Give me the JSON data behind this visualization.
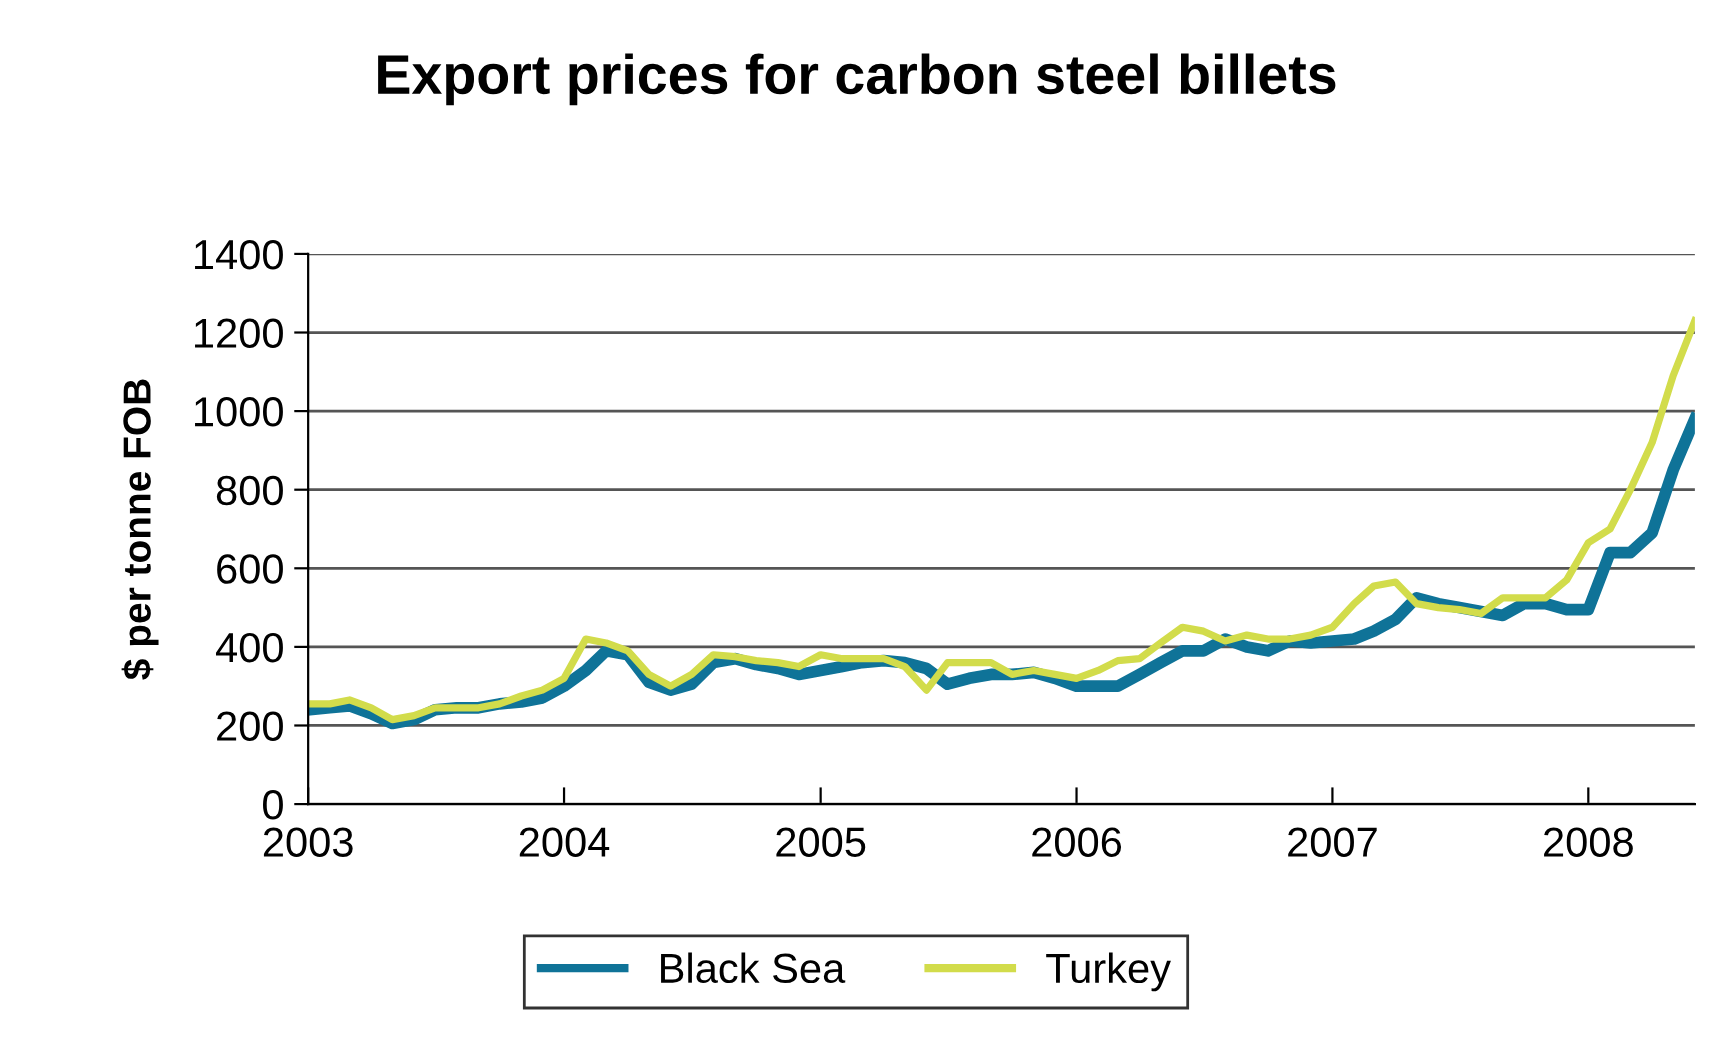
{
  "chart_data": {
    "type": "line",
    "title": "Export prices for carbon steel billets",
    "ylabel": "$ per tonne FOB",
    "x": [
      "2003-01",
      "2003-02",
      "2003-03",
      "2003-04",
      "2003-05",
      "2003-06",
      "2003-07",
      "2003-08",
      "2003-09",
      "2003-10",
      "2003-11",
      "2003-12",
      "2004-01",
      "2004-02",
      "2004-03",
      "2004-04",
      "2004-05",
      "2004-06",
      "2004-07",
      "2004-08",
      "2004-09",
      "2004-10",
      "2004-11",
      "2004-12",
      "2005-01",
      "2005-02",
      "2005-03",
      "2005-04",
      "2005-05",
      "2005-06",
      "2005-07",
      "2005-08",
      "2005-09",
      "2005-10",
      "2005-11",
      "2005-12",
      "2006-01",
      "2006-02",
      "2006-03",
      "2006-04",
      "2006-05",
      "2006-06",
      "2006-07",
      "2006-08",
      "2006-09",
      "2006-10",
      "2006-11",
      "2006-12",
      "2007-01",
      "2007-02",
      "2007-03",
      "2007-04",
      "2007-05",
      "2007-06",
      "2007-07",
      "2007-08",
      "2007-09",
      "2007-10",
      "2007-11",
      "2007-12",
      "2008-01",
      "2008-02",
      "2008-03",
      "2008-04",
      "2008-05",
      "2008-06"
    ],
    "series": [
      {
        "name": "Black Sea",
        "color": "#0f7398",
        "values": [
          240,
          245,
          250,
          230,
          205,
          215,
          240,
          245,
          245,
          255,
          260,
          270,
          300,
          340,
          390,
          380,
          310,
          290,
          305,
          360,
          370,
          355,
          345,
          330,
          340,
          350,
          360,
          365,
          360,
          345,
          305,
          320,
          330,
          330,
          335,
          320,
          300,
          300,
          300,
          330,
          360,
          390,
          390,
          420,
          400,
          390,
          415,
          410,
          415,
          420,
          440,
          470,
          525,
          510,
          500,
          490,
          480,
          510,
          510,
          495,
          495,
          640,
          640,
          690,
          850,
          980
        ]
      },
      {
        "name": "Turkey",
        "color": "#d2dc4b",
        "values": [
          255,
          255,
          265,
          245,
          215,
          225,
          245,
          245,
          245,
          255,
          275,
          290,
          320,
          420,
          410,
          390,
          330,
          300,
          330,
          380,
          375,
          365,
          360,
          350,
          380,
          370,
          370,
          370,
          350,
          290,
          360,
          360,
          360,
          330,
          340,
          330,
          320,
          340,
          365,
          370,
          410,
          450,
          440,
          415,
          430,
          420,
          420,
          430,
          450,
          510,
          555,
          565,
          510,
          500,
          495,
          485,
          525,
          525,
          525,
          570,
          665,
          700,
          800,
          920,
          1090,
          1230
        ]
      }
    ],
    "xlim": [
      "2003-01",
      "2008-06"
    ],
    "xticks": [
      "2003",
      "2004",
      "2005",
      "2006",
      "2007",
      "2008"
    ],
    "ylim": [
      0,
      1400
    ],
    "yticks": [
      0,
      200,
      400,
      600,
      800,
      1000,
      1200,
      1400
    ],
    "grid": "y",
    "legend": "bottom",
    "marker": "none",
    "line_style": "solid"
  }
}
